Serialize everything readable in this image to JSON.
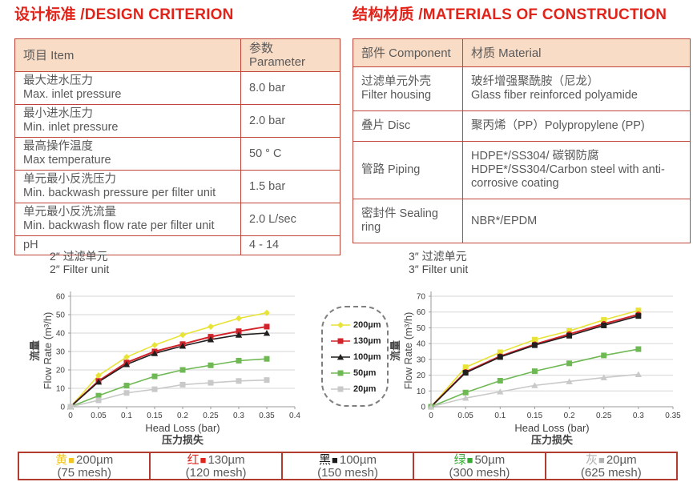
{
  "design": {
    "title": "设计标准 /DESIGN CRITERION",
    "table": {
      "headers": [
        "项目 Item",
        "参数 Parameter"
      ],
      "rows": [
        {
          "c1": [
            "最大进水压力",
            "Max. inlet pressure"
          ],
          "c2": [
            "8.0 bar"
          ]
        },
        {
          "c1": [
            "最小进水压力",
            "Min. inlet pressure"
          ],
          "c2": [
            "2.0 bar"
          ]
        },
        {
          "c1": [
            "最高操作温度",
            "Max temperature"
          ],
          "c2": [
            "50 ° C"
          ]
        },
        {
          "c1": [
            "单元最小反洗压力",
            "Min. backwash pressure per filter unit"
          ],
          "c2": [
            "1.5 bar"
          ]
        },
        {
          "c1": [
            "单元最小反洗流量",
            "Min. backwash flow rate per filter unit"
          ],
          "c2": [
            "2.0 L/sec"
          ]
        },
        {
          "c1": [
            "pH"
          ],
          "c2": [
            "4 - 14"
          ]
        }
      ]
    }
  },
  "materials": {
    "title": "结构材质 /MATERIALS OF CONSTRUCTION",
    "table": {
      "headers": [
        "部件 Component",
        "材质 Material"
      ],
      "rows": [
        {
          "c1": [
            "过滤单元外壳",
            "Filter housing"
          ],
          "c2": [
            "玻纤增强聚酰胺（尼龙）",
            "Glass fiber reinforced polyamide"
          ]
        },
        {
          "c1": [
            "叠片 Disc"
          ],
          "c2": [
            "聚丙烯（PP）Polypropylene (PP)"
          ]
        },
        {
          "c1": [
            "管路 Piping"
          ],
          "c2": [
            "HDPE*/SS304/ 碳钢防腐",
            "HDPE*/SS304/Carbon steel with anti-corrosive coating"
          ]
        },
        {
          "c1": [
            "密封件 Sealing ring"
          ],
          "c2": [
            "NBR*/EPDM"
          ]
        }
      ]
    }
  },
  "chart_data": [
    {
      "type": "line",
      "title_zh": "2″ 过滤单元",
      "title_en": "2″ Filter unit",
      "ylabel_zh": "流量",
      "ylabel_en": "Flow Rate (m³/h)",
      "xlabel_en": "Head Loss (bar)",
      "xlabel_zh": "压力损失",
      "xlim": [
        0,
        0.4
      ],
      "ylim": [
        0,
        60
      ],
      "ytick_step": 10,
      "xticks": [
        0,
        0.05,
        0.1,
        0.15,
        0.2,
        0.25,
        0.3,
        0.35,
        0.4
      ],
      "x": [
        0,
        0.05,
        0.1,
        0.15,
        0.2,
        0.25,
        0.3,
        0.35
      ],
      "grid": "horizontal",
      "series": [
        {
          "name": "200µm",
          "color": "#e8e337",
          "marker": "diamond",
          "values": [
            0,
            17,
            27,
            33.5,
            39,
            43.5,
            48,
            51
          ]
        },
        {
          "name": "130µm",
          "color": "#d2232a",
          "marker": "square",
          "values": [
            0,
            14,
            24,
            30,
            34,
            38,
            41,
            43.5
          ]
        },
        {
          "name": "100µm",
          "color": "#221f1f",
          "marker": "triangle",
          "values": [
            0,
            13.5,
            23,
            29,
            33,
            36.5,
            39,
            40
          ]
        },
        {
          "name": "50µm",
          "color": "#6fb954",
          "marker": "square",
          "values": [
            0,
            6,
            11.5,
            16.5,
            20,
            22.5,
            25,
            26
          ]
        },
        {
          "name": "20µm",
          "color": "#c9c9c9",
          "marker": "square",
          "values": [
            0,
            3.5,
            7.5,
            9.5,
            12,
            13,
            14,
            14.5
          ]
        }
      ]
    },
    {
      "type": "line",
      "title_zh": "3″ 过滤单元",
      "title_en": "3″ Filter unit",
      "ylabel_zh": "流量",
      "ylabel_en": "Flow Rate (m³/h)",
      "xlabel_en": "Head Loss (bar)",
      "xlabel_zh": "压力损失",
      "xlim": [
        0,
        0.35
      ],
      "ylim": [
        0,
        70
      ],
      "ytick_step": 10,
      "xticks": [
        0,
        0.05,
        0.1,
        0.15,
        0.2,
        0.25,
        0.3,
        0.35
      ],
      "x": [
        0,
        0.05,
        0.1,
        0.15,
        0.2,
        0.25,
        0.3
      ],
      "grid": "horizontal",
      "series": [
        {
          "name": "200µm",
          "color": "#e8e337",
          "marker": "square",
          "values": [
            0,
            25,
            34.5,
            42.5,
            48,
            55,
            61
          ]
        },
        {
          "name": "130µm",
          "color": "#d2232a",
          "marker": "circle",
          "values": [
            0,
            22,
            32,
            39.5,
            46,
            52.5,
            58.5
          ]
        },
        {
          "name": "100µm",
          "color": "#221f1f",
          "marker": "square",
          "values": [
            0,
            21.5,
            31.5,
            39,
            45,
            51.5,
            57.5
          ]
        },
        {
          "name": "50µm",
          "color": "#6fb954",
          "marker": "square",
          "values": [
            0,
            9,
            16.5,
            22.5,
            27.5,
            32.5,
            36.5
          ]
        },
        {
          "name": "20µm",
          "color": "#c9c9c9",
          "marker": "triangle",
          "values": [
            0,
            5.5,
            9.5,
            13.5,
            16,
            18.5,
            20.5
          ]
        }
      ]
    }
  ],
  "series_legend": {
    "items": [
      {
        "label": "200µm",
        "color": "#e8e337",
        "marker": "diamond"
      },
      {
        "label": "130µm",
        "color": "#d2232a",
        "marker": "square"
      },
      {
        "label": "100µm",
        "color": "#221f1f",
        "marker": "triangle"
      },
      {
        "label": "50µm",
        "color": "#6fb954",
        "marker": "square"
      },
      {
        "label": "20µm",
        "color": "#c9c9c9",
        "marker": "square"
      }
    ]
  },
  "mesh_legend": {
    "items": [
      {
        "color_name": "黄",
        "color": "#f2c51d",
        "size": "200µm",
        "mesh": "(75 mesh)"
      },
      {
        "color_name": "红",
        "color": "#e2231a",
        "size": "130µm",
        "mesh": "(120 mesh)"
      },
      {
        "color_name": "黑",
        "color": "#1a1a1a",
        "size": "100µm",
        "mesh": "(150 mesh)"
      },
      {
        "color_name": "绿",
        "color": "#39a935",
        "size": "50µm",
        "mesh": "(300 mesh)"
      },
      {
        "color_name": "灰",
        "color": "#b0b0b0",
        "size": "20µm",
        "mesh": "(625 mesh)"
      }
    ]
  },
  "colors": {
    "heading_red": "#e2231a",
    "table_border": "#bf4538",
    "table_header_bg": "#f9dcc6",
    "grid_gray": "#d6d6d6"
  }
}
